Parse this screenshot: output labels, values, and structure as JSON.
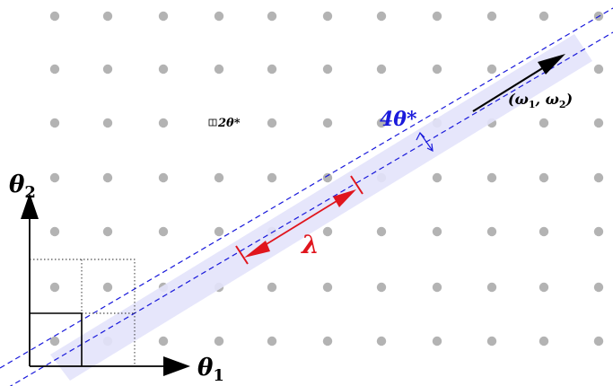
{
  "labels": {
    "theta2": "θ",
    "theta2_sub": "2",
    "theta1": "θ",
    "theta1_sub": "1",
    "omega": "(ω",
    "omega_sub1": "1",
    "omega_mid": ", ω",
    "omega_sub2": "2",
    "omega_end": ")",
    "lambda": "λ",
    "four_theta": "4θ*",
    "two_theta": "2θ*"
  },
  "colors": {
    "dot": "#b3b3b3",
    "band": "#e3e3fb",
    "band_edge": "#1a1adb",
    "lambda": "#e0151d",
    "axis": "#000000",
    "four_theta": "#1a1adb"
  }
}
